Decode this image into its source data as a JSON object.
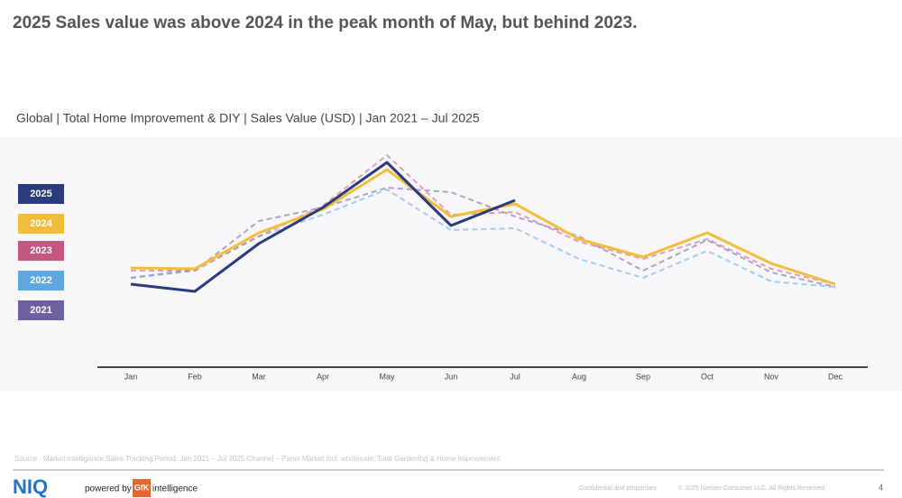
{
  "title": "2025 Sales value was above 2024 in the peak month of May, but behind 2023.",
  "chart_data": {
    "type": "line",
    "subtitle": "Global | Total Home Improvement & DIY | Sales Value (USD) | Jan 2021 – Jul 2025",
    "categories": [
      "Jan",
      "Feb",
      "Mar",
      "Apr",
      "May",
      "Jun",
      "Jul",
      "Aug",
      "Sep",
      "Oct",
      "Nov",
      "Dec"
    ],
    "ylim": [
      0,
      260
    ],
    "series": [
      {
        "name": "2025",
        "color": "#2a3b7c",
        "style": "solid",
        "values": [
          92,
          84,
          137,
          177,
          227,
          157,
          185,
          null,
          null,
          null,
          null,
          null
        ]
      },
      {
        "name": "2024",
        "color": "#f2bd3a",
        "style": "solid",
        "values": [
          110,
          109,
          149,
          175,
          219,
          167,
          181,
          142,
          122,
          149,
          115,
          92
        ]
      },
      {
        "name": "2023",
        "color": "#c4577f",
        "style": "dashed",
        "values": [
          107,
          107,
          145,
          179,
          235,
          169,
          172,
          139,
          120,
          142,
          109,
          92
        ]
      },
      {
        "name": "2022",
        "color": "#5ea6de",
        "style": "dashed",
        "values": [
          99,
          109,
          145,
          169,
          197,
          152,
          154,
          120,
          99,
          129,
          95,
          89
        ]
      },
      {
        "name": "2021",
        "color": "#6e5f9e",
        "style": "dashed",
        "values": [
          99,
          107,
          162,
          177,
          199,
          194,
          167,
          145,
          107,
          141,
          105,
          89
        ]
      }
    ]
  },
  "source": "Source : Market intelligence Sales Tracking Period: Jan 2021 – Jul 2025 Channel – Panel Market incl. wholesale; Total Gardening & Home Improvement",
  "footer": {
    "brand": "NIQ",
    "powered": "powered by",
    "partner": "GfK",
    "partner_suffix": "intelligence",
    "confidential": "Confidential and proprietary",
    "copyright": "© 2025 Nielsen Consumer LLC. All Rights Reserved",
    "page": "4"
  }
}
